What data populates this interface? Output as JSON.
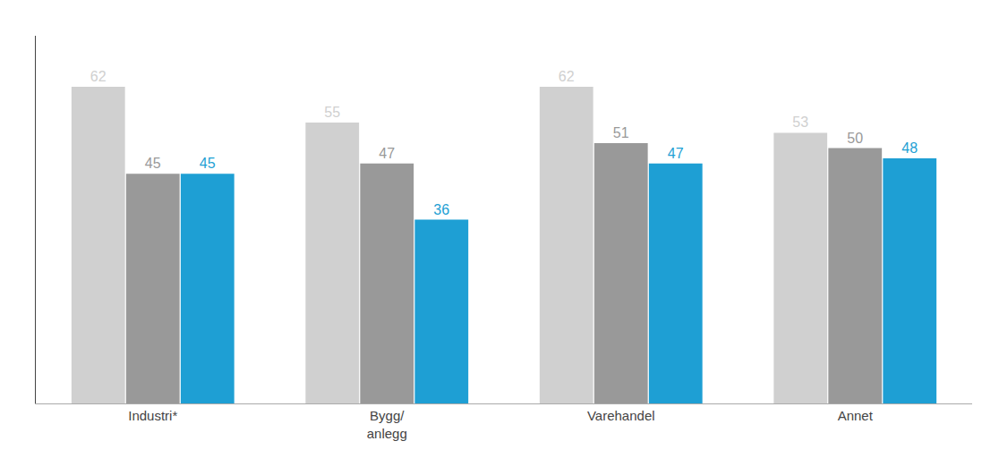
{
  "chart_data": {
    "type": "bar",
    "categories": [
      "Industri*",
      "Bygg/\nanlegg",
      "Varehandel",
      "Annet"
    ],
    "series": [
      {
        "color": "#d0d0d0",
        "values": [
          62,
          55,
          62,
          53
        ]
      },
      {
        "color": "#999999",
        "values": [
          45,
          47,
          51,
          50
        ]
      },
      {
        "color": "#1e9fd4",
        "values": [
          45,
          36,
          47,
          48
        ]
      }
    ],
    "ylim": [
      0,
      72
    ],
    "grid": false,
    "data_labels": true,
    "tick_labels": "x"
  }
}
